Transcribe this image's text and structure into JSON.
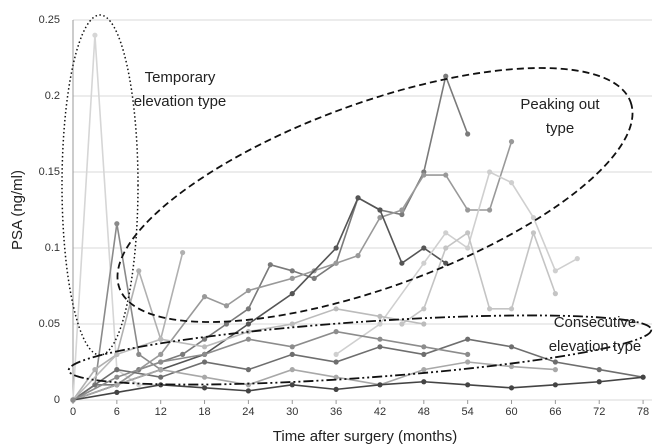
{
  "chart_data": {
    "type": "line",
    "x_label": "Time after surgery (months)",
    "y_label": "PSA (ng/ml)",
    "xlim": [
      0,
      81
    ],
    "xticks": [
      0,
      6,
      12,
      18,
      24,
      30,
      36,
      42,
      48,
      54,
      60,
      66,
      72,
      78
    ],
    "ylim": [
      0,
      0.25
    ],
    "yticks": [
      0,
      0.05,
      0.1,
      0.15,
      0.2,
      0.25
    ],
    "grid": true,
    "annotations": [
      {
        "lines": [
          "Temporary",
          "elevation type"
        ]
      },
      {
        "lines": [
          "Peaking out",
          "type"
        ]
      },
      {
        "lines": [
          "Consecutive",
          "elevation type"
        ]
      }
    ],
    "series": [
      {
        "color": "#d6d6d6",
        "x": [
          0,
          3,
          6,
          9,
          12
        ],
        "values": [
          0,
          0.24,
          0.02,
          0.01,
          0.01
        ]
      },
      {
        "color": "#8a8a8a",
        "x": [
          0,
          3,
          6,
          9,
          12
        ],
        "values": [
          0,
          0.01,
          0.116,
          0.03,
          0.02
        ]
      },
      {
        "color": "#b0b0b0",
        "x": [
          0,
          3,
          6,
          9,
          12,
          15
        ],
        "values": [
          0,
          0.02,
          0.03,
          0.085,
          0.04,
          0.097
        ]
      },
      {
        "color": "#7a7a7a",
        "x": [
          0,
          3,
          6,
          9,
          12,
          15,
          18,
          21,
          24,
          27,
          30,
          33,
          36,
          39,
          42,
          45,
          48,
          51,
          54
        ],
        "values": [
          0,
          0.01,
          0.01,
          0.02,
          0.025,
          0.03,
          0.04,
          0.05,
          0.06,
          0.089,
          0.085,
          0.08,
          0.09,
          0.133,
          0.125,
          0.122,
          0.15,
          0.213,
          0.175
        ]
      },
      {
        "color": "#999999",
        "x": [
          0,
          6,
          12,
          18,
          21,
          24,
          30,
          33,
          36,
          39,
          42,
          45,
          48,
          51,
          54,
          57,
          60
        ],
        "values": [
          0,
          0.01,
          0.03,
          0.068,
          0.062,
          0.072,
          0.08,
          0.085,
          0.09,
          0.095,
          0.12,
          0.125,
          0.148,
          0.148,
          0.125,
          0.125,
          0.17
        ]
      },
      {
        "color": "#555555",
        "x": [
          0,
          6,
          12,
          18,
          24,
          30,
          36,
          39,
          42,
          45,
          48,
          51
        ],
        "values": [
          0,
          0.01,
          0.02,
          0.03,
          0.05,
          0.07,
          0.1,
          0.133,
          0.125,
          0.09,
          0.1,
          0.09
        ]
      },
      {
        "color": "#cfcfcf",
        "x": [
          36,
          42,
          48,
          51,
          54,
          57,
          60,
          63,
          66,
          69
        ],
        "values": [
          0.03,
          0.05,
          0.09,
          0.11,
          0.1,
          0.15,
          0.143,
          0.12,
          0.085,
          0.093
        ]
      },
      {
        "color": "#c4c4c4",
        "x": [
          45,
          48,
          51,
          54,
          57,
          60,
          63,
          66
        ],
        "values": [
          0.05,
          0.06,
          0.1,
          0.11,
          0.06,
          0.06,
          0.11,
          0.07
        ]
      },
      {
        "color": "#6e6e6e",
        "x": [
          0,
          6,
          12,
          18,
          24,
          30,
          36,
          42,
          48,
          54,
          60,
          66,
          72,
          78
        ],
        "values": [
          0,
          0.02,
          0.015,
          0.025,
          0.02,
          0.03,
          0.025,
          0.035,
          0.03,
          0.04,
          0.035,
          0.025,
          0.02,
          0.015
        ]
      },
      {
        "color": "#a8a8a8",
        "x": [
          0,
          6,
          12,
          18,
          24,
          30,
          36,
          42,
          48,
          54,
          60,
          66
        ],
        "values": [
          0,
          0.01,
          0.02,
          0.015,
          0.01,
          0.02,
          0.015,
          0.01,
          0.02,
          0.025,
          0.022,
          0.02
        ]
      },
      {
        "color": "#444444",
        "x": [
          0,
          6,
          12,
          18,
          24,
          30,
          36,
          42,
          48,
          54,
          60,
          66,
          72,
          78
        ],
        "values": [
          0,
          0.005,
          0.01,
          0.008,
          0.006,
          0.01,
          0.007,
          0.01,
          0.012,
          0.01,
          0.008,
          0.01,
          0.012,
          0.015
        ]
      },
      {
        "color": "#bbbbbb",
        "x": [
          0,
          6,
          12,
          18,
          24,
          30,
          36,
          42,
          48
        ],
        "values": [
          0,
          0.03,
          0.04,
          0.035,
          0.045,
          0.05,
          0.06,
          0.055,
          0.05
        ]
      },
      {
        "color": "#8c8c8c",
        "x": [
          0,
          6,
          12,
          18,
          24,
          30,
          36,
          42,
          48,
          54
        ],
        "values": [
          0,
          0.015,
          0.025,
          0.03,
          0.04,
          0.035,
          0.045,
          0.04,
          0.035,
          0.03
        ]
      }
    ]
  }
}
